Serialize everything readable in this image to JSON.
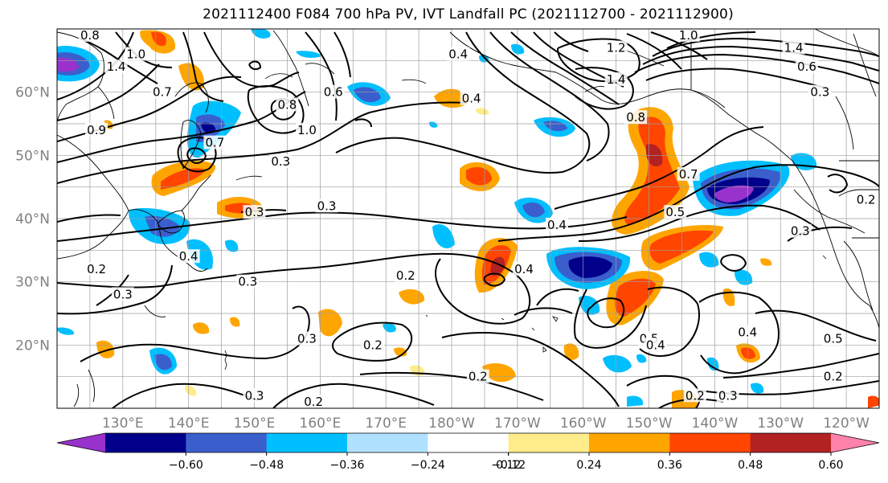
{
  "title": "2021112400 F084 700 hPa PV, IVT Landfall PC (2021112700 - 2021112900)",
  "map": {
    "projection": "PlateCarree",
    "lon_range": [
      120,
      245
    ],
    "lat_range": [
      10,
      70
    ],
    "gridlines": true,
    "lat_labels": [
      {
        "lat": 20,
        "text": "20°N"
      },
      {
        "lat": 30,
        "text": "30°N"
      },
      {
        "lat": 40,
        "text": "40°N"
      },
      {
        "lat": 50,
        "text": "50°N"
      },
      {
        "lat": 60,
        "text": "60°N"
      }
    ],
    "lon_labels": [
      {
        "lon": 130,
        "text": "130°E"
      },
      {
        "lon": 140,
        "text": "140°E"
      },
      {
        "lon": 150,
        "text": "150°E"
      },
      {
        "lon": 160,
        "text": "160°E"
      },
      {
        "lon": 170,
        "text": "170°E"
      },
      {
        "lon": 180,
        "text": "180°W"
      },
      {
        "lon": 190,
        "text": "170°W"
      },
      {
        "lon": 200,
        "text": "160°W"
      },
      {
        "lon": 210,
        "text": "150°W"
      },
      {
        "lon": 220,
        "text": "140°W"
      },
      {
        "lon": 230,
        "text": "130°W"
      },
      {
        "lon": 240,
        "text": "120°W"
      }
    ],
    "contour_labels": [
      {
        "lon": 125,
        "lat": 69,
        "text": "0.8"
      },
      {
        "lon": 132,
        "lat": 66,
        "text": "1.0"
      },
      {
        "lon": 129,
        "lat": 64,
        "text": "1.4"
      },
      {
        "lon": 136,
        "lat": 60,
        "text": "0.7"
      },
      {
        "lon": 126,
        "lat": 54,
        "text": "0.9"
      },
      {
        "lon": 144,
        "lat": 52,
        "text": "0.7"
      },
      {
        "lon": 155,
        "lat": 58,
        "text": "0.8"
      },
      {
        "lon": 158,
        "lat": 54,
        "text": "1.0"
      },
      {
        "lon": 162,
        "lat": 60,
        "text": "0.6"
      },
      {
        "lon": 154,
        "lat": 49,
        "text": "0.3"
      },
      {
        "lon": 181,
        "lat": 66,
        "text": "0.4"
      },
      {
        "lon": 183,
        "lat": 59,
        "text": "0.4"
      },
      {
        "lon": 205,
        "lat": 67,
        "text": "1.2"
      },
      {
        "lon": 205,
        "lat": 62,
        "text": "1.4"
      },
      {
        "lon": 208,
        "lat": 56,
        "text": "0.8"
      },
      {
        "lon": 216,
        "lat": 47,
        "text": "0.7"
      },
      {
        "lon": 214,
        "lat": 41,
        "text": "0.5"
      },
      {
        "lon": 216,
        "lat": 69,
        "text": "1.0"
      },
      {
        "lon": 232,
        "lat": 67,
        "text": "1.4"
      },
      {
        "lon": 234,
        "lat": 64,
        "text": "0.6"
      },
      {
        "lon": 236,
        "lat": 60,
        "text": "0.3"
      },
      {
        "lon": 196,
        "lat": 39,
        "text": "0.4"
      },
      {
        "lon": 191,
        "lat": 32,
        "text": "0.4"
      },
      {
        "lon": 150,
        "lat": 41,
        "text": "0.3"
      },
      {
        "lon": 161,
        "lat": 42,
        "text": "0.3"
      },
      {
        "lon": 140,
        "lat": 34,
        "text": "0.4"
      },
      {
        "lon": 149,
        "lat": 30,
        "text": "0.3"
      },
      {
        "lon": 126,
        "lat": 32,
        "text": "0.2"
      },
      {
        "lon": 130,
        "lat": 28,
        "text": "0.3"
      },
      {
        "lon": 173,
        "lat": 31,
        "text": "0.2"
      },
      {
        "lon": 158,
        "lat": 21,
        "text": "0.3"
      },
      {
        "lon": 168,
        "lat": 20,
        "text": "0.2"
      },
      {
        "lon": 184,
        "lat": 15,
        "text": "0.2"
      },
      {
        "lon": 150,
        "lat": 12,
        "text": "0.3"
      },
      {
        "lon": 159,
        "lat": 11,
        "text": "0.2"
      },
      {
        "lon": 210,
        "lat": 21,
        "text": "0.5"
      },
      {
        "lon": 211,
        "lat": 20,
        "text": "0.4"
      },
      {
        "lon": 225,
        "lat": 22,
        "text": "0.4"
      },
      {
        "lon": 233,
        "lat": 38,
        "text": "0.3"
      },
      {
        "lon": 238,
        "lat": 21,
        "text": "0.5"
      },
      {
        "lon": 238,
        "lat": 15,
        "text": "0.2"
      },
      {
        "lon": 217,
        "lat": 12,
        "text": "0.2"
      },
      {
        "lon": 222,
        "lat": 12,
        "text": "0.3"
      },
      {
        "lon": 243,
        "lat": 43,
        "text": "0.2"
      }
    ]
  },
  "colorbar": {
    "ticks": [
      "−0.60",
      "−0.48",
      "−0.36",
      "−0.24",
      "−0.12",
      "0.12",
      "0.24",
      "0.36",
      "0.48",
      "0.60"
    ],
    "colors": [
      "#9932CC",
      "#00008B",
      "#3A5FCD",
      "#00BFFF",
      "#B0E2FF",
      "#FFFFFF",
      "#FFEC8B",
      "#FFA500",
      "#FF4500",
      "#B22222",
      "#FF82AB"
    ]
  }
}
